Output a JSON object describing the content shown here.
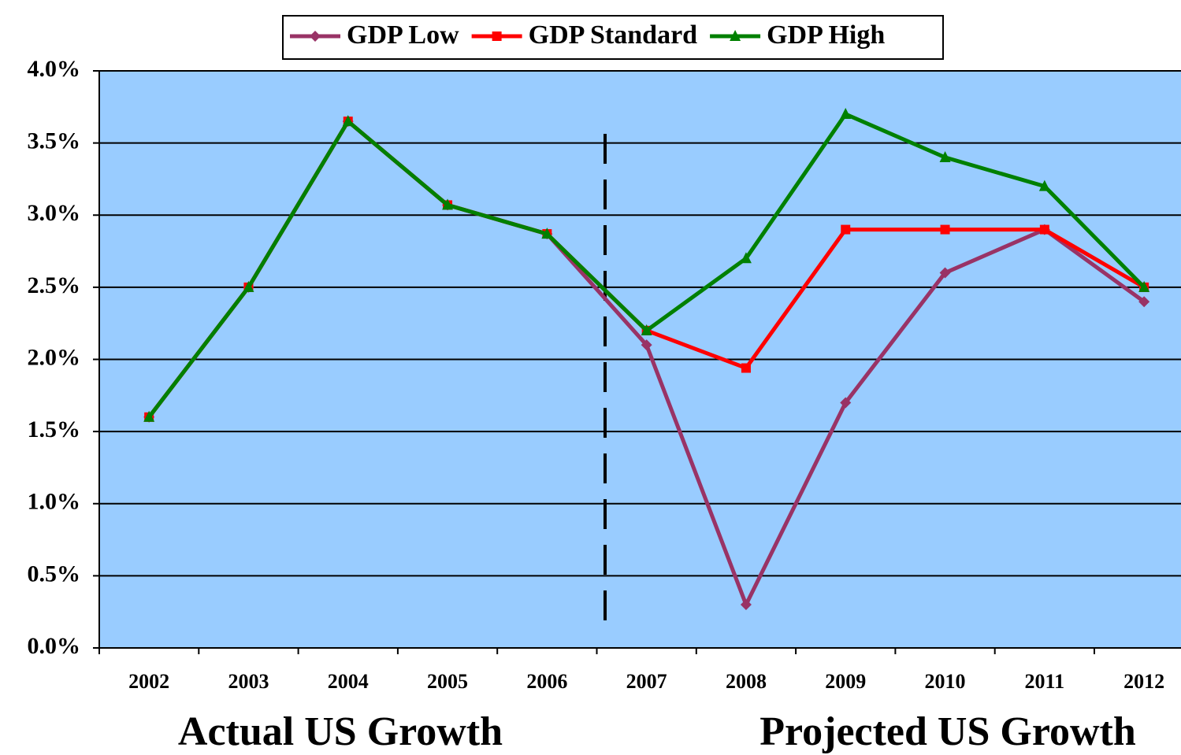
{
  "chart_data": {
    "type": "line",
    "categories": [
      "2002",
      "2003",
      "2004",
      "2005",
      "2006",
      "2007",
      "2008",
      "2009",
      "2010",
      "2011",
      "2012"
    ],
    "series": [
      {
        "name": "GDP Low",
        "color": "#993366",
        "marker": "diamond",
        "values": [
          1.6,
          2.5,
          3.65,
          3.07,
          2.87,
          2.1,
          0.3,
          1.7,
          2.6,
          2.9,
          2.4
        ]
      },
      {
        "name": "GDP Standard",
        "color": "#ff0000",
        "marker": "square",
        "values": [
          1.6,
          2.5,
          3.65,
          3.07,
          2.87,
          2.2,
          1.94,
          2.9,
          2.9,
          2.9,
          2.5
        ]
      },
      {
        "name": "GDP High",
        "color": "#008000",
        "marker": "triangle",
        "values": [
          1.6,
          2.5,
          3.65,
          3.07,
          2.87,
          2.2,
          2.7,
          3.7,
          3.4,
          3.2,
          2.5
        ]
      }
    ],
    "ylim": [
      0,
      4
    ],
    "yticks": [
      {
        "value": 0,
        "label": "0.0%"
      },
      {
        "value": 0.5,
        "label": "0.5%"
      },
      {
        "value": 1,
        "label": "1.0%"
      },
      {
        "value": 1.5,
        "label": "1.5%"
      },
      {
        "value": 2,
        "label": "2.0%"
      },
      {
        "value": 2.5,
        "label": "2.5%"
      },
      {
        "value": 3,
        "label": "3.0%"
      },
      {
        "value": 3.5,
        "label": "3.5%"
      },
      {
        "value": 4,
        "label": "4.0%"
      }
    ],
    "grid": true,
    "plot_background": "#99ccff",
    "legend": "top",
    "annotations": [
      "Actual US Growth",
      "Projected US Growth"
    ]
  }
}
